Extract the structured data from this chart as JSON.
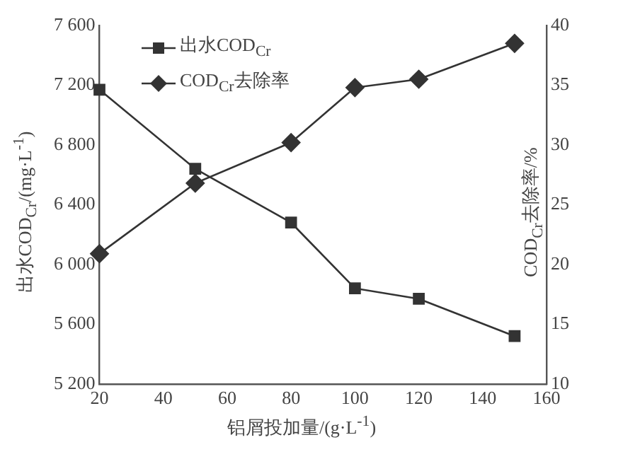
{
  "chart_data": {
    "type": "line",
    "xlabel": "铝屑投加量/(g·L$^{-1}$)",
    "ylabel": "出水COD$_{Cr}$/(mg·L$^{-1}$)",
    "y2label": "COD$_{Cr}$去除率/%",
    "x": [
      20,
      50,
      80,
      100,
      120,
      150
    ],
    "series": [
      {
        "name": "出水COD$_{Cr}$",
        "color": "#333333",
        "marker": "square",
        "values": [
          7170,
          6640,
          6280,
          5840,
          5770,
          5520
        ]
      },
      {
        "name": "COD$_{Cr}$去除率",
        "color": "#333333",
        "marker": "diamond",
        "axis": "y2",
        "values": [
          20.9,
          26.8,
          30.2,
          34.8,
          35.5,
          38.5
        ]
      }
    ],
    "xlim": [
      20,
      160
    ],
    "xticks": [
      20,
      40,
      60,
      80,
      100,
      120,
      140,
      160
    ],
    "ylim": [
      5200,
      7600
    ],
    "yticks": [
      {
        "value": 5200,
        "label": "5 200"
      },
      {
        "value": 5600,
        "label": "5 600"
      },
      {
        "value": 6000,
        "label": "6 000"
      },
      {
        "value": 6400,
        "label": "6 400"
      },
      {
        "value": 6800,
        "label": "6 800"
      },
      {
        "value": 7200,
        "label": "7 200"
      },
      {
        "value": 7600,
        "label": "7 600"
      }
    ],
    "y2lim": [
      10,
      40
    ],
    "y2ticks": [
      10,
      15,
      20,
      25,
      30,
      35,
      40
    ],
    "grid": false,
    "legend": "top left",
    "line_style": "solid"
  }
}
